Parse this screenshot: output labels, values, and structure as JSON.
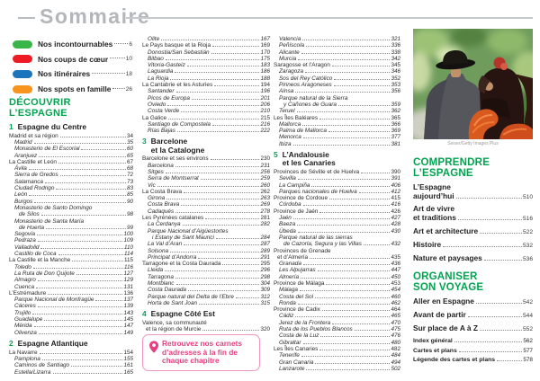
{
  "header": {
    "title": "Sommaire"
  },
  "legend": {
    "items": [
      {
        "icon": "green-swatch-icon",
        "color": "#39b54a",
        "l": "Nos incontournables",
        "p": "6"
      },
      {
        "icon": "red-swatch-icon",
        "color": "#ed1c24",
        "l": "Nos coups de cœur",
        "p": "10"
      },
      {
        "icon": "blue-swatch-icon",
        "color": "#1c75bc",
        "l": "Nos itinéraires",
        "p": "18"
      },
      {
        "icon": "orange-swatch-icon",
        "color": "#f7941d",
        "l": "Nos spots en famille",
        "p": "26"
      }
    ]
  },
  "toc": {
    "col1": [
      {
        "big": [
          "DÉCOUVRIR",
          "L’ESPAGNE"
        ]
      },
      {
        "sec": "1",
        "title": [
          "Espagne du Centre"
        ]
      },
      {
        "l": "Madrid et sa région",
        "p": "34",
        "s": "m"
      },
      {
        "l": "Madrid",
        "p": "35",
        "s": "i"
      },
      {
        "l": "Monasterio de El Escorial",
        "p": "60",
        "s": "i"
      },
      {
        "l": "Aranjuez",
        "p": "65",
        "s": "i"
      },
      {
        "l": "La Castille et León",
        "p": "67",
        "s": "m"
      },
      {
        "l": "Ávila",
        "p": "68",
        "s": "i"
      },
      {
        "l": "Sierra de Gredos",
        "p": "72",
        "s": "i"
      },
      {
        "l": "Salamanca",
        "p": "73",
        "s": "i"
      },
      {
        "l": "Ciudad Rodrigo",
        "p": "83",
        "s": "i"
      },
      {
        "l": "León",
        "p": "85",
        "s": "i"
      },
      {
        "l": "Burgos",
        "p": "90",
        "s": "i"
      },
      {
        "l": "Monasterio de Santo Domingo",
        "l2": "de Silos",
        "p": "98",
        "s": "i"
      },
      {
        "l": "Monasterio de Santa María",
        "l2": "de Huerta",
        "p": "99",
        "s": "i"
      },
      {
        "l": "Segovia",
        "p": "100",
        "s": "i"
      },
      {
        "l": "Pedraza",
        "p": "109",
        "s": "i"
      },
      {
        "l": "Valladolid",
        "p": "110",
        "s": "i"
      },
      {
        "l": "Castillo de Coca",
        "p": "114",
        "s": "i"
      },
      {
        "l": "La Castille et la Manche",
        "p": "115",
        "s": "m"
      },
      {
        "l": "Toledo",
        "p": "116",
        "s": "i"
      },
      {
        "l": "La Ruta de Don Quijote",
        "p": "127",
        "s": "i"
      },
      {
        "l": "Almagro",
        "p": "129",
        "s": "i"
      },
      {
        "l": "Cuenca",
        "p": "131",
        "s": "i"
      },
      {
        "l": "L’Estrémadure",
        "p": "136",
        "s": "m"
      },
      {
        "l": "Parque Nacional de Monfragüe",
        "p": "137",
        "s": "i"
      },
      {
        "l": "Cáceres",
        "p": "139",
        "s": "i"
      },
      {
        "l": "Trujillo",
        "p": "143",
        "s": "i"
      },
      {
        "l": "Guadalupe",
        "p": "145",
        "s": "i"
      },
      {
        "l": "Mérida",
        "p": "147",
        "s": "i"
      },
      {
        "l": "Olivenza",
        "p": "149",
        "s": "i"
      },
      {
        "sec": "2",
        "title": [
          "Espagne Atlantique"
        ]
      },
      {
        "l": "La Navarre",
        "p": "154",
        "s": "m"
      },
      {
        "l": "Pamplona",
        "p": "155",
        "s": "i"
      },
      {
        "l": "Caminos de Santiago",
        "p": "161",
        "s": "i"
      },
      {
        "l": "Estella/Lizarra",
        "p": "165",
        "s": "i"
      }
    ],
    "col2": [
      {
        "l": "Olite",
        "p": "167",
        "s": "i"
      },
      {
        "l": "Le Pays basque et la Rioja",
        "p": "169",
        "s": "m"
      },
      {
        "l": "Donostia/San Sebastián",
        "p": "170",
        "s": "i"
      },
      {
        "l": "Bilbao",
        "p": "175",
        "s": "i"
      },
      {
        "l": "Vitoria-Gasteiz",
        "p": "183",
        "s": "i"
      },
      {
        "l": "Laguardia",
        "p": "186",
        "s": "i"
      },
      {
        "l": "La Rioja",
        "p": "188",
        "s": "i"
      },
      {
        "l": "La Cantabrie et les Asturies",
        "p": "194",
        "s": "m"
      },
      {
        "l": "Santander",
        "p": "196",
        "s": "i"
      },
      {
        "l": "Picos de Europa",
        "p": "201",
        "s": "i"
      },
      {
        "l": "Oviedo",
        "p": "206",
        "s": "i"
      },
      {
        "l": "Costa Verde",
        "p": "210",
        "s": "i"
      },
      {
        "l": "La Galice",
        "p": "215",
        "s": "m"
      },
      {
        "l": "Santiago de Compostela",
        "p": "216",
        "s": "i"
      },
      {
        "l": "Rías Bajas",
        "p": "222",
        "s": "i"
      },
      {
        "sec": "3",
        "title": [
          "Barcelone",
          "et la Catalogne"
        ]
      },
      {
        "l": "Barcelone et ses environs",
        "p": "230",
        "s": "m"
      },
      {
        "l": "Barcelona",
        "p": "231",
        "s": "i"
      },
      {
        "l": "Sitges",
        "p": "256",
        "s": "i"
      },
      {
        "l": "Serra de Montserrat",
        "p": "259",
        "s": "i"
      },
      {
        "l": "Vic",
        "p": "260",
        "s": "i"
      },
      {
        "l": "La Costa Brava",
        "p": "262",
        "s": "m"
      },
      {
        "l": "Girona",
        "p": "263",
        "s": "i"
      },
      {
        "l": "Costa Brava",
        "p": "269",
        "s": "i"
      },
      {
        "l": "Cadaqués",
        "p": "278",
        "s": "i"
      },
      {
        "l": "Les Pyrénées catalanes",
        "p": "281",
        "s": "m"
      },
      {
        "l": "La Cerdanya",
        "p": "282",
        "s": "i"
      },
      {
        "l": "Parque Nacional d’Aigüestortes",
        "l2": "i Estany de Sant Maurici",
        "p": "284",
        "s": "i"
      },
      {
        "l": "La Val d’Aran",
        "p": "287",
        "s": "i"
      },
      {
        "l": "Solsona",
        "p": "289",
        "s": "i"
      },
      {
        "l": "Principat d’Andorra",
        "p": "291",
        "s": "i"
      },
      {
        "l": "Tarragone et la Costa Daurada",
        "p": "295",
        "s": "m"
      },
      {
        "l": "Lleida",
        "p": "296",
        "s": "i"
      },
      {
        "l": "Tarragona",
        "p": "298",
        "s": "i"
      },
      {
        "l": "Montblanc",
        "p": "304",
        "s": "i"
      },
      {
        "l": "Costa Daurada",
        "p": "309",
        "s": "i"
      },
      {
        "l": "Parque natural del Delta de l’Ebre",
        "p": "312",
        "s": "i"
      },
      {
        "l": "Horta de Sant Joan",
        "p": "315",
        "s": "i"
      },
      {
        "sec": "4",
        "title": [
          "Espagne Côté Est"
        ]
      },
      {
        "l": "Valence, sa communauté",
        "l2": "et la région de Murcie",
        "p": "320",
        "s": "m"
      }
    ],
    "col3": [
      {
        "l": "Valencia",
        "p": "321",
        "s": "i"
      },
      {
        "l": "Peñíscola",
        "p": "336",
        "s": "i"
      },
      {
        "l": "Alicante",
        "p": "338",
        "s": "i"
      },
      {
        "l": "Murcia",
        "p": "342",
        "s": "i"
      },
      {
        "l": "Saragosse et l’Aragon",
        "p": "345",
        "s": "m"
      },
      {
        "l": "Zaragoza",
        "p": "346",
        "s": "i"
      },
      {
        "l": "Sos del Rey Católico",
        "p": "352",
        "s": "i"
      },
      {
        "l": "Pirineos Aragoneses",
        "p": "353",
        "s": "i"
      },
      {
        "l": "Aínsa",
        "p": "356",
        "s": "i"
      },
      {
        "l": "Parque natural de la Sierra",
        "l2": "y Cañones de Guara",
        "p": "359",
        "s": "i"
      },
      {
        "l": "Teruel",
        "p": "362",
        "s": "i"
      },
      {
        "l": "Les Îles Baléares",
        "p": "365",
        "s": "m"
      },
      {
        "l": "Mallorca",
        "p": "366",
        "s": "i"
      },
      {
        "l": "Palma de Mallorca",
        "p": "369",
        "s": "i"
      },
      {
        "l": "Menorca",
        "p": "377",
        "s": "i"
      },
      {
        "l": "Ibiza",
        "p": "381",
        "s": "i"
      },
      {
        "sec": "5",
        "title": [
          "L’Andalousie",
          "et les Canaries"
        ]
      },
      {
        "l": "Provinces de Séville et de Huelva",
        "p": "390",
        "s": "m"
      },
      {
        "l": "Sevilla",
        "p": "391",
        "s": "i"
      },
      {
        "l": "La Campiña",
        "p": "406",
        "s": "i"
      },
      {
        "l": "Parques nacionales de Huelva",
        "p": "412",
        "s": "i"
      },
      {
        "l": "Province de Cordoue",
        "p": "415",
        "s": "m"
      },
      {
        "l": "Córdoba",
        "p": "416",
        "s": "i"
      },
      {
        "l": "Province de Jaén",
        "p": "426",
        "s": "m"
      },
      {
        "l": "Jaén",
        "p": "427",
        "s": "i"
      },
      {
        "l": "Baeza",
        "p": "428",
        "s": "i"
      },
      {
        "l": "Úbeda",
        "p": "430",
        "s": "i"
      },
      {
        "l": "Parque natural de las sierras",
        "l2": "de Cazorla, Segura y las Villas",
        "p": "432",
        "s": "i"
      },
      {
        "l": "Provinces de Grenade",
        "l2": "et d’Almería",
        "p": "435",
        "s": "m"
      },
      {
        "l": "Granada",
        "p": "436",
        "s": "i"
      },
      {
        "l": "Les Alpujarras",
        "p": "447",
        "s": "i"
      },
      {
        "l": "Almería",
        "p": "450",
        "s": "i"
      },
      {
        "l": "Province de Málaga",
        "p": "453",
        "s": "m"
      },
      {
        "l": "Málaga",
        "p": "454",
        "s": "i"
      },
      {
        "l": "Costa del Sol",
        "p": "460",
        "s": "i"
      },
      {
        "l": "Ronda",
        "p": "462",
        "s": "i"
      },
      {
        "l": "Province de Cadix",
        "p": "464",
        "s": "m"
      },
      {
        "l": "Cádiz",
        "p": "465",
        "s": "i"
      },
      {
        "l": "Jerez de la Frontera",
        "p": "470",
        "s": "i"
      },
      {
        "l": "Ruta de los Pueblos Blancos",
        "p": "475",
        "s": "i"
      },
      {
        "l": "Costa de la Luz",
        "p": "476",
        "s": "i"
      },
      {
        "l": "Gibraltar",
        "p": "480",
        "s": "i"
      },
      {
        "l": "Les Îles Canaries",
        "p": "482",
        "s": "m"
      },
      {
        "l": "Tenerife",
        "p": "484",
        "s": "i"
      },
      {
        "l": "Gran Canaria",
        "p": "494",
        "s": "i"
      },
      {
        "l": "Lanzarote",
        "p": "502",
        "s": "i"
      }
    ]
  },
  "note": {
    "text": "Retrouvez nos carnets d’adresses à la fin de chaque chapitre"
  },
  "photo": {
    "credit": "Seiser/Getty Images Plus"
  },
  "comprendre": {
    "line1": "COMPRENDRE",
    "line2": "L’ESPAGNE",
    "items": [
      {
        "l": "L’Espagne",
        "l2": "aujourd’hui",
        "p": "510"
      },
      {
        "l": "Art de vivre",
        "l2": "et traditions",
        "p": "516"
      },
      {
        "l": "Art et architecture",
        "p": "522"
      },
      {
        "l": "Histoire",
        "p": "532"
      },
      {
        "l": "Nature et paysages",
        "p": "536"
      }
    ]
  },
  "organiser": {
    "line1": "ORGANISER",
    "line2": "SON VOYAGE",
    "items": [
      {
        "l": "Aller en Espagne",
        "p": "542"
      },
      {
        "l": "Avant de partir",
        "p": "544"
      },
      {
        "l": "Sur place de A à Z",
        "p": "552"
      }
    ],
    "small_items": [
      {
        "l": "Index général",
        "p": "562"
      },
      {
        "l": "Cartes et plans",
        "p": "577"
      },
      {
        "l": "Légende des cartes et plans",
        "p": "578"
      }
    ]
  },
  "colors": {
    "accent_green": "#00a44f",
    "pink": "#e63e80",
    "title_gray": "#b3b7ba"
  }
}
